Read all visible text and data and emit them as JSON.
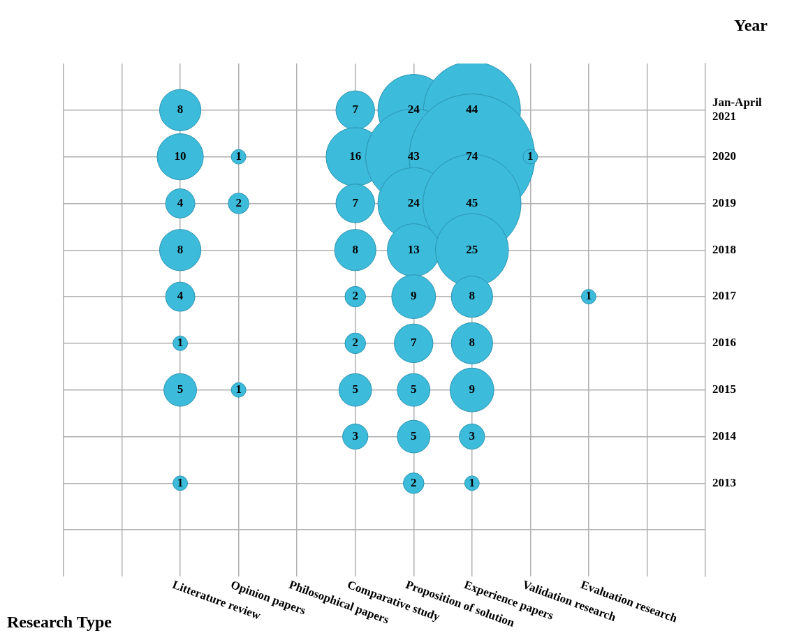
{
  "chart_data": {
    "type": "bubble",
    "xlabel": "Research Type",
    "ylabel": "Year",
    "categories": [
      null,
      null,
      "Litterature review",
      "Opinion papers",
      "Philosophical papers",
      "Comparative study",
      "Proposition of solution",
      "Experience papers",
      "Validation research",
      "Evaluation research",
      null
    ],
    "ylim": [
      2011,
      2022
    ],
    "yticks": [
      {
        "value": 2012,
        "label": null
      },
      2013,
      2014,
      2015,
      2016,
      2017,
      2018,
      2019,
      2020,
      {
        "value": 2021,
        "label": "Jan-April 2021"
      }
    ],
    "grid": true,
    "series": [
      {
        "color": "#3dbbdb",
        "x": [
          "Litterature review",
          "Comparative study",
          "Proposition of solution",
          "Experience papers",
          "Litterature review",
          "Opinion papers",
          "Comparative study",
          "Proposition of solution",
          "Experience papers",
          "Validation research",
          "Litterature review",
          "Opinion papers",
          "Comparative study",
          "Proposition of solution",
          "Experience papers",
          "Litterature review",
          "Comparative study",
          "Proposition of solution",
          "Experience papers",
          "Litterature review",
          "Comparative study",
          "Proposition of solution",
          "Experience papers",
          "Evaluation research",
          "Litterature review",
          "Comparative study",
          "Proposition of solution",
          "Experience papers",
          "Litterature review",
          "Opinion papers",
          "Comparative study",
          "Proposition of solution",
          "Experience papers",
          "Comparative study",
          "Proposition of solution",
          "Experience papers",
          "Litterature review",
          "Proposition of solution",
          "Experience papers"
        ],
        "values": [
          2021,
          2021,
          2021,
          2021,
          2020,
          2020,
          2020,
          2020,
          2020,
          2020,
          2019,
          2019,
          2019,
          2019,
          2019,
          2018,
          2018,
          2018,
          2018,
          2017,
          2017,
          2017,
          2017,
          2017,
          2016,
          2016,
          2016,
          2016,
          2015,
          2015,
          2015,
          2015,
          2015,
          2014,
          2014,
          2014,
          2013,
          2013,
          2013
        ],
        "sizes": [
          8,
          7,
          24,
          44,
          10,
          1,
          16,
          43,
          74,
          1,
          4,
          2,
          7,
          24,
          45,
          8,
          8,
          13,
          25,
          4,
          2,
          9,
          8,
          1,
          1,
          2,
          7,
          8,
          5,
          1,
          5,
          5,
          9,
          3,
          5,
          3,
          1,
          2,
          1
        ],
        "value_labels": [
          "8",
          "7",
          "24",
          "44",
          "10",
          "1",
          "16",
          "43",
          "74",
          "1",
          "4",
          "2",
          "7",
          "24",
          "45",
          "8",
          "8",
          "13",
          "25",
          "4",
          "2",
          "9",
          "8",
          "1",
          "1",
          "2",
          "7",
          "8",
          "5",
          "1",
          "5",
          "5",
          "9",
          "3",
          "5",
          "3",
          "1",
          "2",
          "1"
        ]
      }
    ]
  }
}
